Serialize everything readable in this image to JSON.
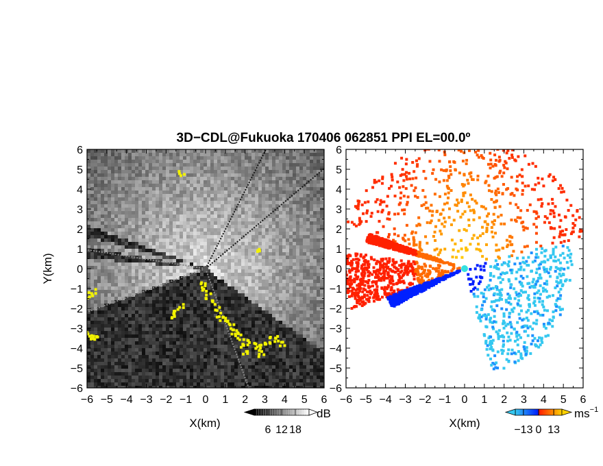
{
  "chart_data": {
    "type": "heatmap",
    "title": "3D−CDL@Fukuoka 170406 062851 PPI EL=00.0º",
    "panels": [
      {
        "name": "reflectivity",
        "xlabel": "X(km)",
        "ylabel": "Y(km)",
        "xlim": [
          -6,
          6
        ],
        "ylim": [
          -6,
          6
        ],
        "xticks": [
          "−6",
          "−5",
          "−4",
          "−3",
          "−2",
          "−1",
          "0",
          "1",
          "2",
          "3",
          "4",
          "5",
          "6"
        ],
        "yticks": [
          "−6",
          "−5",
          "−4",
          "−3",
          "−2",
          "−1",
          "0",
          "1",
          "2",
          "3",
          "4",
          "5",
          "6"
        ],
        "colorbar": {
          "unit": "dB",
          "ticks": [
            "6",
            "12",
            "18"
          ],
          "range": [
            0,
            24
          ]
        }
      },
      {
        "name": "doppler-velocity",
        "xlabel": "X(km)",
        "ylabel": "",
        "xlim": [
          -6,
          6
        ],
        "ylim": [
          -6,
          6
        ],
        "xticks": [
          "−6",
          "−5",
          "−4",
          "−3",
          "−2",
          "−1",
          "0",
          "1",
          "2",
          "3",
          "4",
          "5",
          "6"
        ],
        "yticks": [
          "−6",
          "−5",
          "−4",
          "−3",
          "−2",
          "−1",
          "0",
          "1",
          "2",
          "3",
          "4",
          "5",
          "6"
        ],
        "colorbar": {
          "unit": "ms",
          "unit_exponent": "−1",
          "ticks": [
            "−13",
            "0",
            "13"
          ],
          "range": [
            -20,
            20
          ]
        }
      }
    ],
    "colors": {
      "yellow_mask": "#f2f200",
      "vel_neg_strong": "#0020ff",
      "vel_neg_weak": "#35c8f0",
      "vel_pos_weak": "#ffd200",
      "vel_pos_strong": "#ff2000"
    }
  }
}
